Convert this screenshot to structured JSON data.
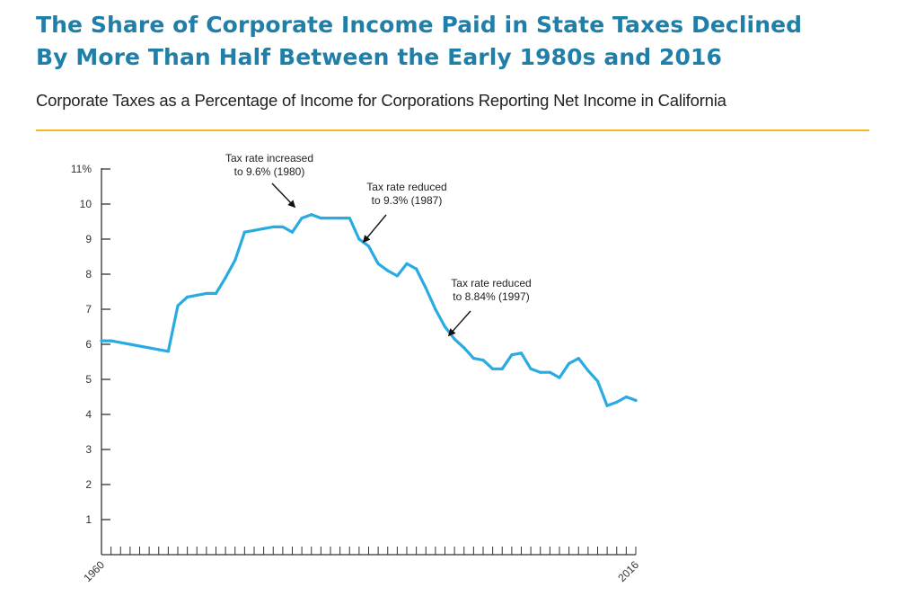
{
  "header": {
    "title_line1": "The Share of Corporate Income Paid in State Taxes Declined",
    "title_line2": "By More Than Half Between the Early 1980s and 2016",
    "subtitle": "Corporate Taxes as a Percentage of Income for Corporations Reporting Net Income in California"
  },
  "colors": {
    "title": "#1f7fa8",
    "line": "#29abe2",
    "rule": "#f6b824"
  },
  "chart_data": {
    "type": "line",
    "title": "The Share of Corporate Income Paid in State Taxes Declined By More Than Half Between the Early 1980s and 2016",
    "subtitle": "Corporate Taxes as a Percentage of Income for Corporations Reporting Net Income in California",
    "xlabel": "",
    "ylabel": "",
    "xlim": [
      1960,
      2016
    ],
    "ylim": [
      0,
      11
    ],
    "y_ticks": [
      1,
      2,
      3,
      4,
      5,
      6,
      7,
      8,
      9,
      10,
      11
    ],
    "y_tick_labels": [
      "1",
      "2",
      "3",
      "4",
      "5",
      "6",
      "7",
      "8",
      "9",
      "10",
      "11%"
    ],
    "x_tick_labels": [
      "1960",
      "2016"
    ],
    "grid": false,
    "legend": "none",
    "x": [
      1960,
      1961,
      1962,
      1963,
      1964,
      1965,
      1966,
      1967,
      1968,
      1969,
      1970,
      1971,
      1972,
      1973,
      1974,
      1975,
      1976,
      1977,
      1978,
      1979,
      1980,
      1981,
      1982,
      1983,
      1984,
      1985,
      1986,
      1987,
      1988,
      1989,
      1990,
      1991,
      1992,
      1993,
      1994,
      1995,
      1996,
      1997,
      1998,
      1999,
      2000,
      2001,
      2002,
      2003,
      2004,
      2005,
      2006,
      2007,
      2008,
      2009,
      2010,
      2011,
      2012,
      2013,
      2014,
      2015,
      2016
    ],
    "series": [
      {
        "values": [
          6.1,
          6.1,
          6.05,
          6.0,
          5.95,
          5.9,
          5.85,
          5.8,
          7.1,
          7.35,
          7.4,
          7.45,
          7.45,
          7.9,
          8.4,
          9.2,
          9.25,
          9.3,
          9.35,
          9.35,
          9.2,
          9.6,
          9.7,
          9.6,
          9.6,
          9.6,
          9.6,
          9.0,
          8.8,
          8.3,
          8.1,
          7.95,
          8.3,
          8.15,
          7.6,
          7.0,
          6.5,
          6.15,
          5.9,
          5.6,
          5.55,
          5.3,
          5.3,
          5.7,
          5.75,
          5.3,
          5.2,
          5.2,
          5.05,
          5.45,
          5.6,
          5.25,
          4.95,
          4.25,
          4.35,
          4.5,
          4.4
        ]
      }
    ],
    "annotations": [
      {
        "line1": "Tax rate increased",
        "line2": "to 9.6% (1980)",
        "year": 1981
      },
      {
        "line1": "Tax rate reduced",
        "line2": "to 9.3% (1987)",
        "year": 1988
      },
      {
        "line1": "Tax rate reduced",
        "line2": "to 8.84% (1997)",
        "year": 1999
      }
    ]
  }
}
